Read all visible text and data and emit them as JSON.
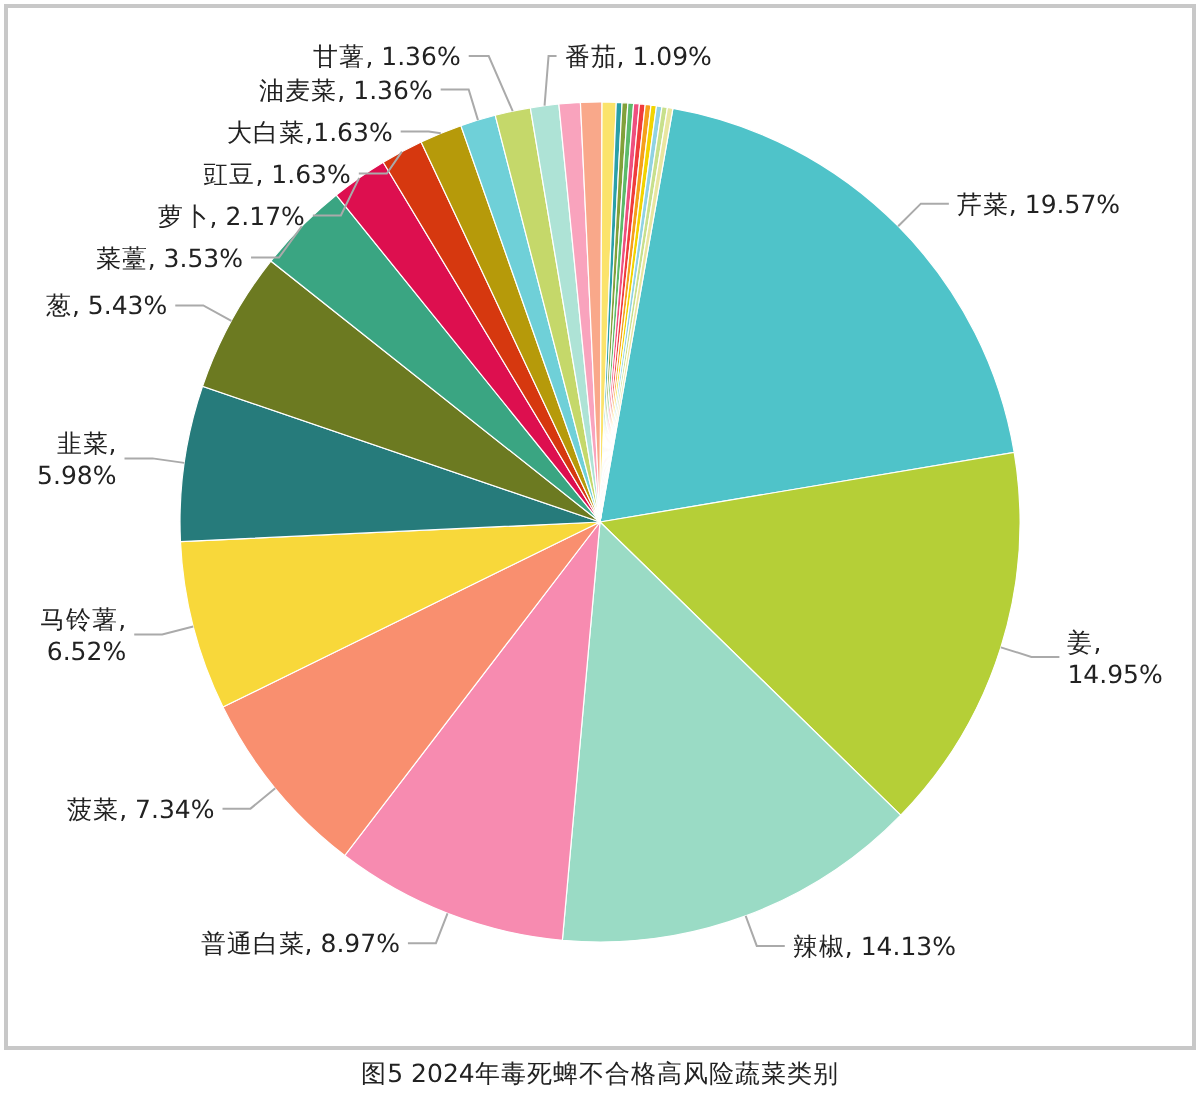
{
  "chart_data": {
    "type": "pie",
    "title": "图5 2024年毒死蜱不合格高风险蔬菜类别",
    "categories": [
      "芹菜",
      "姜",
      "辣椒",
      "普通白菜",
      "菠菜",
      "马铃薯",
      "韭菜",
      "葱",
      "菜薹",
      "萝卜",
      "豇豆",
      "大白菜",
      "油麦菜",
      "甘薯",
      "番茄",
      null,
      null,
      null,
      null,
      null,
      null,
      null,
      null,
      null,
      null,
      null,
      null,
      null
    ],
    "values": [
      19.57,
      14.95,
      14.13,
      8.97,
      7.34,
      6.52,
      5.98,
      5.43,
      3.53,
      2.17,
      1.63,
      1.63,
      1.36,
      1.36,
      1.09,
      0.82,
      0.82,
      0.54,
      0.22,
      0.22,
      0.22,
      0.22,
      0.22,
      0.22,
      0.21,
      0.21,
      0.21,
      0.21
    ],
    "value_labels": [
      ", 19.57%",
      ", 14.95%",
      ", 14.13%",
      ", 8.97%",
      ", 7.34%",
      ", 6.52%",
      ", 5.98%",
      ", 5.43%",
      ", 3.53%",
      ", 2.17%",
      ", 1.63%",
      ",1.63%",
      ", 1.36%",
      ", 1.36%",
      ", 1.09%",
      null,
      null,
      null,
      null,
      null,
      null,
      null,
      null,
      null,
      null,
      null,
      null,
      null
    ],
    "colors": [
      "#4fc3c9",
      "#b5cf37",
      "#9adbc5",
      "#f78bb0",
      "#f98f6f",
      "#f8d83a",
      "#267b7b",
      "#6c7a21",
      "#3aa582",
      "#dd0f4f",
      "#d6380f",
      "#b69a0a",
      "#6fd0d8",
      "#c5d86a",
      "#aee3d6",
      "#f9a3bd",
      "#f9a88a",
      "#fbe36b",
      "#2aa0a8",
      "#82a13a",
      "#5dba6a",
      "#ef4f7f",
      "#f03c3c",
      "#f5a01b",
      "#f2d400",
      "#90d3e2",
      "#c8e08c",
      "#e9e6a0"
    ]
  }
}
